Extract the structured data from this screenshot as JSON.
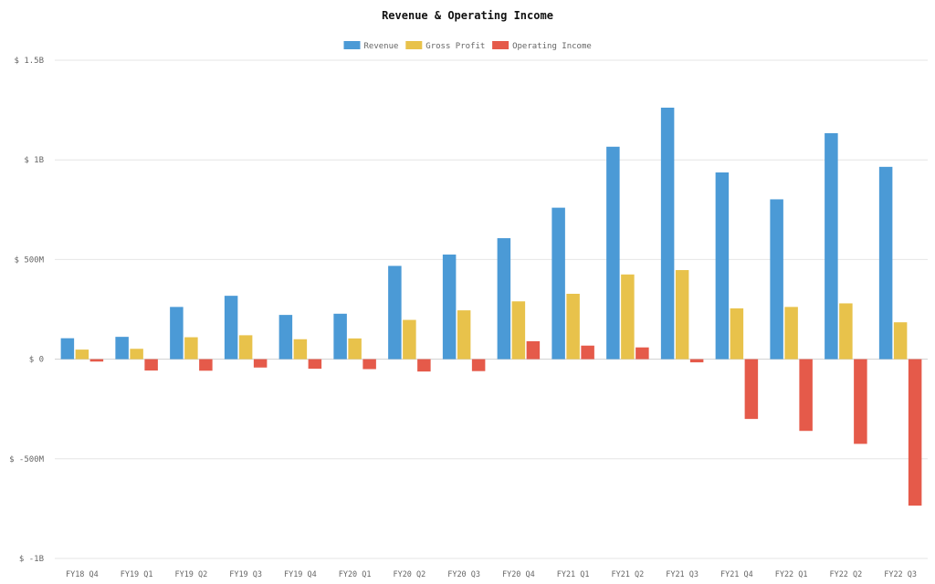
{
  "chart_data": {
    "type": "bar",
    "title": "Revenue & Operating Income",
    "legend_position": "top-center",
    "grid": true,
    "ylim": [
      -1000000000,
      1500000000
    ],
    "y_ticks": [
      {
        "value": 1500000000,
        "label": "$ 1.5B"
      },
      {
        "value": 1000000000,
        "label": "$ 1B"
      },
      {
        "value": 500000000,
        "label": "$ 500M"
      },
      {
        "value": 0,
        "label": "$ 0"
      },
      {
        "value": -500000000,
        "label": "$ -500M"
      },
      {
        "value": -1000000000,
        "label": "$ -1B"
      }
    ],
    "categories": [
      "FY18 Q4",
      "FY19 Q1",
      "FY19 Q2",
      "FY19 Q3",
      "FY19 Q4",
      "FY20 Q1",
      "FY20 Q2",
      "FY20 Q3",
      "FY20 Q4",
      "FY21 Q1",
      "FY21 Q2",
      "FY21 Q3",
      "FY21 Q4",
      "FY22 Q1",
      "FY22 Q2",
      "FY22 Q3"
    ],
    "series": [
      {
        "name": "Revenue",
        "color": "#4b9ad6",
        "values": [
          105000000,
          112000000,
          262000000,
          318000000,
          222000000,
          228000000,
          468000000,
          525000000,
          607000000,
          760000000,
          1066000000,
          1262000000,
          937000000,
          802000000,
          1134000000,
          965000000
        ]
      },
      {
        "name": "Gross Profit",
        "color": "#e8c24b",
        "values": [
          48000000,
          52000000,
          110000000,
          120000000,
          100000000,
          104000000,
          197000000,
          245000000,
          290000000,
          328000000,
          425000000,
          447000000,
          255000000,
          262000000,
          280000000,
          185000000
        ]
      },
      {
        "name": "Operating Income",
        "color": "#e55a4a",
        "values": [
          -12000000,
          -57000000,
          -58000000,
          -42000000,
          -48000000,
          -50000000,
          -62000000,
          -60000000,
          90000000,
          68000000,
          59000000,
          -16000000,
          -300000000,
          -360000000,
          -425000000,
          -735000000
        ]
      }
    ]
  }
}
